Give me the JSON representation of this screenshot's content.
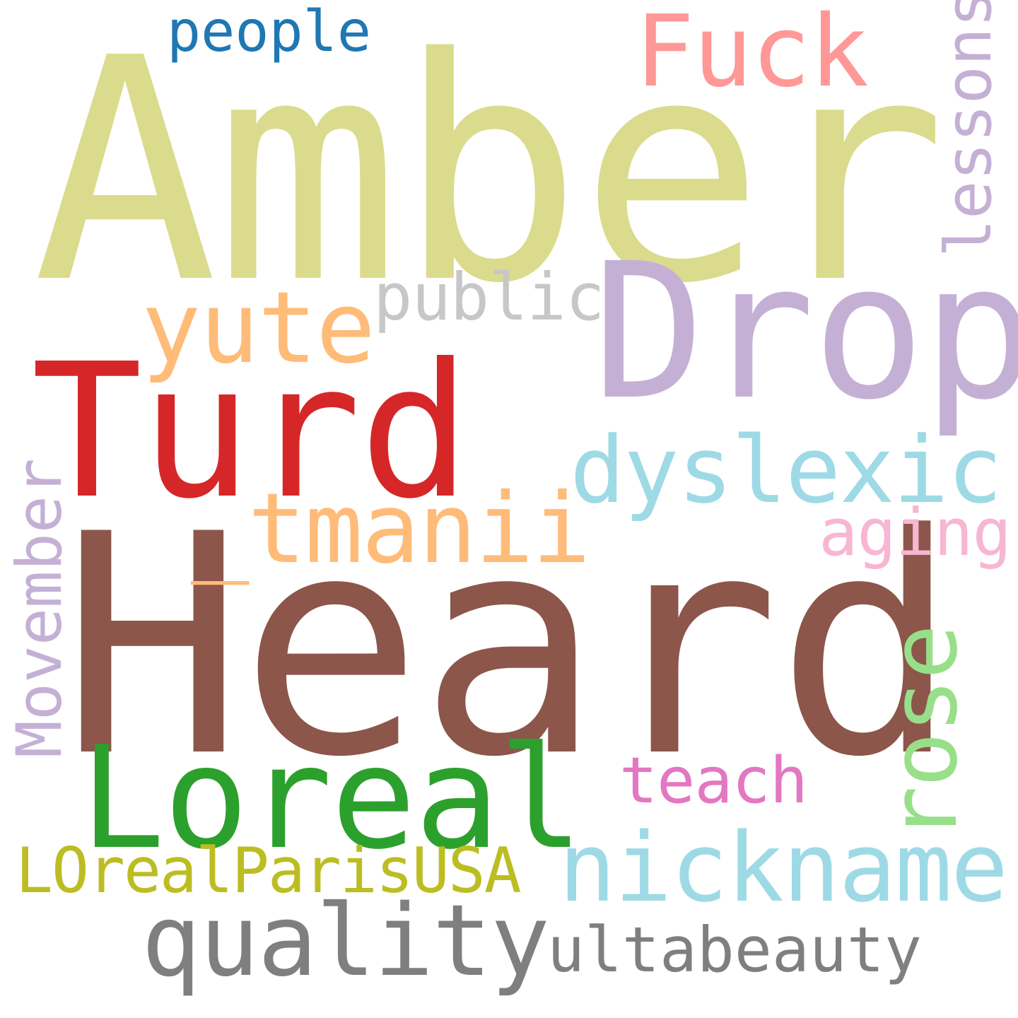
{
  "words": {
    "amber": {
      "text": "Amber",
      "color": "#dbdb8d"
    },
    "heard": {
      "text": "Heard",
      "color": "#8c564b"
    },
    "drop": {
      "text": "Drop",
      "color": "#c5b0d5"
    },
    "turd": {
      "text": "Turd",
      "color": "#d62728"
    },
    "loreal": {
      "text": "Loreal",
      "color": "#2ca02c"
    },
    "fuck": {
      "text": "Fuck",
      "color": "#ff9896"
    },
    "dyslexic": {
      "text": "dyslexic",
      "color": "#9edae5"
    },
    "nickname": {
      "text": "nickname",
      "color": "#9edae5"
    },
    "quality": {
      "text": "quality",
      "color": "#7f7f7f"
    },
    "yute": {
      "text": "yute",
      "color": "#ffbb78"
    },
    "tmanii": {
      "text": "_tmanii",
      "color": "#ffbb78"
    },
    "public": {
      "text": "public",
      "color": "#c7c7c7"
    },
    "people": {
      "text": "people",
      "color": "#1f77b4"
    },
    "lessons": {
      "text": "lessons",
      "color": "#c5b0d5"
    },
    "aging": {
      "text": "aging",
      "color": "#f7b6d2"
    },
    "movember": {
      "text": "Movember",
      "color": "#c5b0d5"
    },
    "rose": {
      "text": "rose",
      "color": "#98df8a"
    },
    "teach": {
      "text": "teach",
      "color": "#e377c2"
    },
    "ultabeauty": {
      "text": "ultabeauty",
      "color": "#7f7f7f"
    },
    "lorealparis": {
      "text": "LOrealParisUSA",
      "color": "#bcbd22"
    }
  },
  "background": "#ffffff"
}
